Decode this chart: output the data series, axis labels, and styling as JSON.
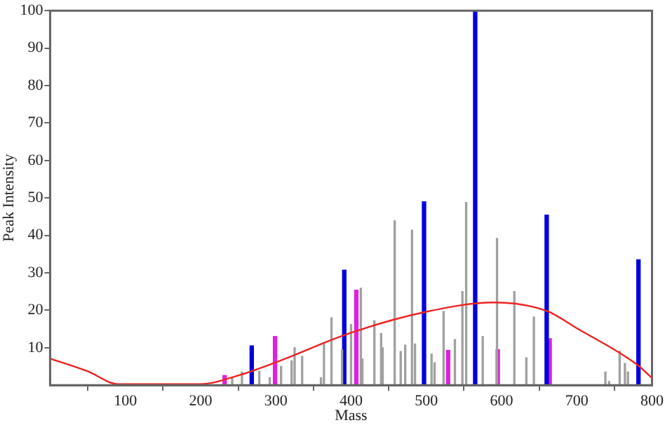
{
  "chart_data": {
    "type": "bar",
    "xlabel": "Mass",
    "ylabel": "Peak Intensity",
    "xlim": [
      0,
      800
    ],
    "ylim": [
      0,
      100
    ],
    "xticks": [
      100,
      200,
      300,
      400,
      500,
      600,
      700,
      800
    ],
    "yticks": [
      10,
      20,
      30,
      40,
      50,
      60,
      70,
      80,
      90,
      100
    ],
    "grid": false,
    "legend": false,
    "series": [
      {
        "color": "#a0a0a0",
        "x": [
          242,
          255,
          278,
          292,
          307,
          321,
          325,
          335,
          360,
          364,
          374,
          388,
          400,
          413,
          415,
          431,
          440,
          442,
          458,
          466,
          472,
          481,
          485,
          507,
          511,
          523,
          538,
          548,
          553,
          575,
          594,
          617,
          633,
          643,
          738,
          743,
          757,
          764,
          768
        ],
        "values": [
          2,
          3.5,
          3.7,
          2,
          5,
          6.5,
          10,
          7.7,
          2,
          11,
          18,
          9.4,
          16.2,
          25.9,
          7,
          17.2,
          13.8,
          10,
          43.9,
          9,
          10.7,
          41.4,
          11,
          8.3,
          6,
          19.7,
          12.2,
          25,
          48.8,
          13,
          39.2,
          25,
          7.3,
          18.2,
          3.5,
          1,
          9.1,
          5.8,
          3.5
        ]
      },
      {
        "color": "#0000dd",
        "x": [
          268,
          391,
          497,
          565,
          660,
          782
        ],
        "values": [
          10.5,
          30.7,
          49,
          100,
          45.4,
          33.5
        ]
      },
      {
        "color": "#dd22dd",
        "x": [
          232,
          299,
          407,
          529,
          595,
          664
        ],
        "values": [
          2.6,
          13,
          25.4,
          9.3,
          9.5,
          12.4
        ]
      },
      {
        "type": "line",
        "color": "#ee2222",
        "x": [
          0,
          50,
          90,
          100,
          200,
          250,
          300,
          400,
          500,
          590,
          660,
          700,
          780,
          800
        ],
        "values": [
          7.1,
          3.7,
          0.3,
          0.3,
          0.3,
          2.6,
          6.1,
          14,
          19.6,
          22.1,
          19.8,
          15.2,
          5.5,
          1.9
        ]
      }
    ]
  }
}
